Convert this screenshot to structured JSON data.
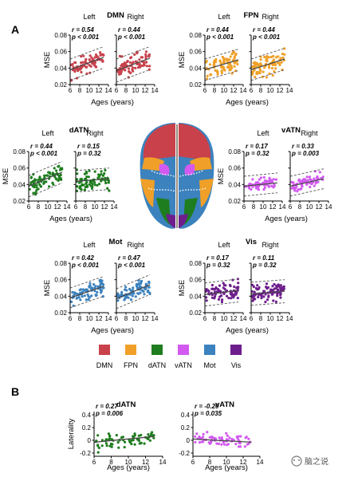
{
  "figure": {
    "panel_a_label": "A",
    "panel_b_label": "B",
    "watermark_text": "脑之说",
    "brain_image": "brain-atlas-dorsal-view"
  },
  "legend": [
    {
      "label": "DMN",
      "color": "#c8414b"
    },
    {
      "label": "FPN",
      "color": "#f0a028"
    },
    {
      "label": "dATN",
      "color": "#1e7d1e"
    },
    {
      "label": "vATN",
      "color": "#d25af0"
    },
    {
      "label": "Mot",
      "color": "#3c82be"
    },
    {
      "label": "Vis",
      "color": "#6e1e8c"
    }
  ],
  "chart_data": [
    {
      "type": "scatter",
      "network": "DMN",
      "hemisphere": "Left",
      "stat_r": "r = 0.54",
      "stat_p": "p < 0.001",
      "color": "#c8414b",
      "xlabel": "",
      "ylabel": "MSE",
      "xlim": [
        6,
        14
      ],
      "ylim": [
        0.02,
        0.08
      ],
      "xticks": [
        "6",
        "8",
        "10",
        "12",
        "14"
      ],
      "yticks": [
        "0.02",
        "0.04",
        "0.06",
        "0.08"
      ],
      "fit": {
        "x": [
          6,
          13
        ],
        "y": [
          0.038,
          0.053
        ]
      },
      "ci_offset": 0.013,
      "seed": 11,
      "noise": 0.011,
      "n": 80
    },
    {
      "type": "scatter",
      "network": "DMN",
      "hemisphere": "Right",
      "stat_r": "r = 0.44",
      "stat_p": "p < 0.001",
      "color": "#c8414b",
      "xlabel": "",
      "ylabel": "",
      "xlim": [
        6,
        14
      ],
      "ylim": [
        0.02,
        0.08
      ],
      "xticks": [
        "6",
        "8",
        "10",
        "12",
        "14"
      ],
      "yticks": [],
      "fit": {
        "x": [
          6,
          13
        ],
        "y": [
          0.037,
          0.052
        ]
      },
      "ci_offset": 0.014,
      "seed": 12,
      "noise": 0.012,
      "n": 80
    },
    {
      "type": "scatter",
      "network": "FPN",
      "hemisphere": "Left",
      "stat_r": "r = 0.44",
      "stat_p": "p < 0.001",
      "color": "#f0a028",
      "xlabel": "",
      "ylabel": "MSE",
      "xlim": [
        6,
        14
      ],
      "ylim": [
        0.02,
        0.08
      ],
      "xticks": [
        "6",
        "8",
        "10",
        "12",
        "14"
      ],
      "yticks": [
        "0.02",
        "0.04",
        "0.06",
        "0.08"
      ],
      "fit": {
        "x": [
          6,
          13
        ],
        "y": [
          0.038,
          0.05
        ]
      },
      "ci_offset": 0.013,
      "seed": 21,
      "noise": 0.011,
      "n": 80
    },
    {
      "type": "scatter",
      "network": "FPN",
      "hemisphere": "Right",
      "stat_r": "r = 0.44",
      "stat_p": "p < 0.001",
      "color": "#f0a028",
      "xlabel": "",
      "ylabel": "",
      "xlim": [
        6,
        14
      ],
      "ylim": [
        0.02,
        0.08
      ],
      "xticks": [
        "6",
        "8",
        "10",
        "12",
        "14"
      ],
      "yticks": [],
      "fit": {
        "x": [
          6,
          13
        ],
        "y": [
          0.038,
          0.051
        ]
      },
      "ci_offset": 0.013,
      "seed": 22,
      "noise": 0.011,
      "n": 80
    },
    {
      "type": "scatter",
      "network": "dATN",
      "hemisphere": "Left",
      "stat_r": "r = 0.44",
      "stat_p": "p < 0.001",
      "color": "#1e7d1e",
      "xlabel": "Ages (years)",
      "ylabel": "MSE",
      "xlim": [
        6,
        14
      ],
      "ylim": [
        0.02,
        0.08
      ],
      "xticks": [
        "6",
        "8",
        "10",
        "12",
        "14"
      ],
      "yticks": [
        "0.02",
        "0.04",
        "0.06",
        "0.08"
      ],
      "fit": {
        "x": [
          6,
          13
        ],
        "y": [
          0.038,
          0.055
        ]
      },
      "ci_offset": 0.013,
      "seed": 31,
      "noise": 0.011,
      "n": 80
    },
    {
      "type": "scatter",
      "network": "dATN",
      "hemisphere": "Right",
      "stat_r": "r = 0.15",
      "stat_p": "p = 0.32",
      "color": "#1e7d1e",
      "xlabel": "",
      "ylabel": "",
      "xlim": [
        6,
        14
      ],
      "ylim": [
        0.02,
        0.08
      ],
      "xticks": [
        "6",
        "8",
        "10",
        "12",
        "14"
      ],
      "yticks": [],
      "fit": {
        "x": [
          6,
          13
        ],
        "y": [
          0.044,
          0.047
        ]
      },
      "ci_offset": 0.013,
      "seed": 32,
      "noise": 0.011,
      "n": 80
    },
    {
      "type": "scatter",
      "network": "vATN",
      "hemisphere": "Left",
      "stat_r": "r = 0.17",
      "stat_p": "p = 0.32",
      "color": "#d25af0",
      "xlabel": "Ages (years)",
      "ylabel": "MSE",
      "xlim": [
        6,
        14
      ],
      "ylim": [
        0.02,
        0.08
      ],
      "xticks": [
        "6",
        "8",
        "10",
        "12",
        "14"
      ],
      "yticks": [
        "0.02",
        "0.04",
        "0.06",
        "0.08"
      ],
      "fit": {
        "x": [
          6,
          13
        ],
        "y": [
          0.038,
          0.042
        ]
      },
      "ci_offset": 0.012,
      "seed": 41,
      "noise": 0.007,
      "n": 70
    },
    {
      "type": "scatter",
      "network": "vATN",
      "hemisphere": "Right",
      "stat_r": "r = 0.33",
      "stat_p": "p = 0.003",
      "color": "#d25af0",
      "xlabel": "",
      "ylabel": "",
      "xlim": [
        6,
        14
      ],
      "ylim": [
        0.02,
        0.08
      ],
      "xticks": [
        "6",
        "8",
        "10",
        "12",
        "14"
      ],
      "yticks": [],
      "fit": {
        "x": [
          6,
          13
        ],
        "y": [
          0.038,
          0.047
        ]
      },
      "ci_offset": 0.012,
      "seed": 42,
      "noise": 0.008,
      "n": 70
    },
    {
      "type": "scatter",
      "network": "Mot",
      "hemisphere": "Left",
      "stat_r": "r = 0.42",
      "stat_p": "p < 0.001",
      "color": "#3c82be",
      "xlabel": "Ages (years)",
      "ylabel": "MSE",
      "xlim": [
        6,
        14
      ],
      "ylim": [
        0.02,
        0.08
      ],
      "xticks": [
        "6",
        "8",
        "10",
        "12",
        "14"
      ],
      "yticks": [
        "0.02",
        "0.04",
        "0.06",
        "0.08"
      ],
      "fit": {
        "x": [
          6,
          13
        ],
        "y": [
          0.038,
          0.052
        ]
      },
      "ci_offset": 0.012,
      "seed": 51,
      "noise": 0.009,
      "n": 80
    },
    {
      "type": "scatter",
      "network": "Mot",
      "hemisphere": "Right",
      "stat_r": "r = 0.47",
      "stat_p": "p < 0.001",
      "color": "#3c82be",
      "xlabel": "",
      "ylabel": "",
      "xlim": [
        6,
        14
      ],
      "ylim": [
        0.02,
        0.08
      ],
      "xticks": [
        "6",
        "8",
        "10",
        "12",
        "14"
      ],
      "yticks": [],
      "fit": {
        "x": [
          6,
          13
        ],
        "y": [
          0.037,
          0.054
        ]
      },
      "ci_offset": 0.012,
      "seed": 52,
      "noise": 0.009,
      "n": 80
    },
    {
      "type": "scatter",
      "network": "Vis",
      "hemisphere": "Left",
      "stat_r": "r = 0.17",
      "stat_p": "p = 0.32",
      "color": "#6e1e8c",
      "xlabel": "Ages (years)",
      "ylabel": "MSE",
      "xlim": [
        6,
        14
      ],
      "ylim": [
        0.02,
        0.08
      ],
      "xticks": [
        "6",
        "8",
        "10",
        "12",
        "14"
      ],
      "yticks": [
        "0.02",
        "0.04",
        "0.06",
        "0.08"
      ],
      "fit": {
        "x": [
          6,
          13
        ],
        "y": [
          0.042,
          0.047
        ]
      },
      "ci_offset": 0.014,
      "seed": 61,
      "noise": 0.01,
      "n": 80
    },
    {
      "type": "scatter",
      "network": "Vis",
      "hemisphere": "Right",
      "stat_r": "r = 0.11",
      "stat_p": "p = 0.32",
      "color": "#6e1e8c",
      "xlabel": "",
      "ylabel": "",
      "xlim": [
        6,
        14
      ],
      "ylim": [
        0.02,
        0.08
      ],
      "xticks": [
        "6",
        "8",
        "10",
        "12",
        "14"
      ],
      "yticks": [],
      "fit": {
        "x": [
          6,
          13
        ],
        "y": [
          0.043,
          0.046
        ]
      },
      "ci_offset": 0.014,
      "seed": 62,
      "noise": 0.01,
      "n": 80
    },
    {
      "type": "scatter",
      "network": "dATN",
      "hemisphere": "",
      "stat_r": "r = 0.27",
      "stat_p": "p = 0.006",
      "color": "#1e7d1e",
      "xlabel": "Ages (years)",
      "ylabel": "Laterality",
      "xlim": [
        6,
        14
      ],
      "ylim": [
        -0.25,
        0.45
      ],
      "xticks": [
        "6",
        "8",
        "10",
        "12",
        "14"
      ],
      "yticks": [
        "-0.2",
        "0",
        "0.2",
        "0.4"
      ],
      "fit": {
        "x": [
          6,
          13
        ],
        "y": [
          -0.03,
          0.06
        ]
      },
      "ci_offset": 0,
      "seed": 71,
      "noise": 0.11,
      "n": 70
    },
    {
      "type": "scatter",
      "network": "vATN",
      "hemisphere": "",
      "stat_r": "r = -0.20",
      "stat_p": "p = 0.035",
      "color": "#d25af0",
      "xlabel": "Ages (years)",
      "ylabel": "",
      "xlim": [
        6,
        14
      ],
      "ylim": [
        -0.25,
        0.45
      ],
      "xticks": [
        "6",
        "8",
        "10",
        "12",
        "14"
      ],
      "yticks": [
        "-0.2",
        "0",
        "0.2",
        "0.4"
      ],
      "fit": {
        "x": [
          6,
          13
        ],
        "y": [
          0.02,
          -0.03
        ]
      },
      "ci_offset": 0,
      "seed": 72,
      "noise": 0.09,
      "n": 70
    }
  ]
}
